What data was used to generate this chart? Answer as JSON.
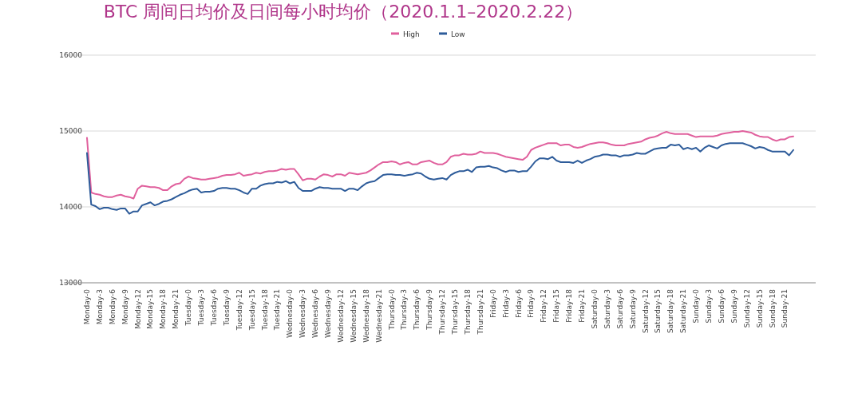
{
  "chart_data": {
    "type": "line",
    "title": "BTC 周间日均价及日间每小时均价（2020.1.1–2020.2.22）",
    "categories": [
      "Monday-0",
      null,
      null,
      "Monday-3",
      null,
      null,
      "Monday-6",
      null,
      null,
      "Monday-9",
      null,
      null,
      "Monday-12",
      null,
      null,
      "Monday-15",
      null,
      null,
      "Monday-18",
      null,
      null,
      "Monday-21",
      null,
      null,
      "Tuesday-0",
      null,
      null,
      "Tuesday-3",
      null,
      null,
      "Tuesday-6",
      null,
      null,
      "Tuesday-9",
      null,
      null,
      "Tuesday-12",
      null,
      null,
      "Tuesday-15",
      null,
      null,
      "Tuesday-18",
      null,
      null,
      "Tuesday-21",
      null,
      null,
      "Wednesday-0",
      null,
      null,
      "Wednesday-3",
      null,
      null,
      "Wednesday-6",
      null,
      null,
      "Wednesday-9",
      null,
      null,
      "Wednesday-12",
      null,
      null,
      "Wednesday-15",
      null,
      null,
      "Wednesday-18",
      null,
      null,
      "Wednesday-21",
      null,
      null,
      "Thursday-0",
      null,
      null,
      "Thursday-3",
      null,
      null,
      "Thursday-6",
      null,
      null,
      "Thursday-9",
      null,
      null,
      "Thursday-12",
      null,
      null,
      "Thursday-15",
      null,
      null,
      "Thursday-18",
      null,
      null,
      "Thursday-21",
      null,
      null,
      "Friday-0",
      null,
      null,
      "Friday-3",
      null,
      null,
      "Friday-6",
      null,
      null,
      "Friday-9",
      null,
      null,
      "Friday-12",
      null,
      null,
      "Friday-15",
      null,
      null,
      "Friday-18",
      null,
      null,
      "Friday-21",
      null,
      null,
      "Saturday-0",
      null,
      null,
      "Saturday-3",
      null,
      null,
      "Saturday-6",
      null,
      null,
      "Saturday-9",
      null,
      null,
      "Saturday-12",
      null,
      null,
      "Saturday-15",
      null,
      null,
      "Saturday-18",
      null,
      null,
      "Saturday-21",
      null,
      null,
      "Sunday-0",
      null,
      null,
      "Sunday-3",
      null,
      null,
      "Sunday-6",
      null,
      null,
      "Sunday-9",
      null,
      null,
      "Sunday-12",
      null,
      null,
      "Sunday-15",
      null,
      null,
      "Sunday-18",
      null,
      null,
      "Sunday-21",
      null,
      null
    ],
    "series": [
      {
        "name": "High",
        "color": "#e0609d",
        "values": [
          14910,
          14190,
          14170,
          14160,
          14140,
          14130,
          14130,
          14150,
          14160,
          14140,
          14130,
          14110,
          14240,
          14280,
          14270,
          14260,
          14260,
          14250,
          14220,
          14220,
          14270,
          14300,
          14310,
          14370,
          14400,
          14380,
          14370,
          14360,
          14360,
          14370,
          14380,
          14390,
          14410,
          14420,
          14420,
          14430,
          14450,
          14410,
          14420,
          14430,
          14450,
          14440,
          14460,
          14470,
          14470,
          14480,
          14500,
          14490,
          14500,
          14500,
          14430,
          14350,
          14370,
          14370,
          14360,
          14400,
          14430,
          14420,
          14400,
          14430,
          14430,
          14410,
          14450,
          14440,
          14430,
          14440,
          14450,
          14480,
          14520,
          14560,
          14590,
          14590,
          14600,
          14590,
          14560,
          14580,
          14590,
          14560,
          14560,
          14590,
          14600,
          14610,
          14580,
          14560,
          14560,
          14590,
          14660,
          14680,
          14680,
          14700,
          14690,
          14690,
          14700,
          14730,
          14710,
          14710,
          14710,
          14700,
          14680,
          14660,
          14650,
          14640,
          14630,
          14620,
          14660,
          14750,
          14780,
          14800,
          14820,
          14840,
          14840,
          14840,
          14810,
          14820,
          14820,
          14790,
          14780,
          14790,
          14810,
          14830,
          14840,
          14850,
          14850,
          14840,
          14820,
          14810,
          14810,
          14810,
          14830,
          14840,
          14850,
          14860,
          14890,
          14910,
          14920,
          14940,
          14970,
          14990,
          14970,
          14960,
          14960,
          14960,
          14960,
          14940,
          14920,
          14930,
          14930,
          14930,
          14930,
          14940,
          14960,
          14970,
          14980,
          14990,
          14990,
          15000,
          14990,
          14980,
          14950,
          14930,
          14920,
          14920,
          14890,
          14870,
          14890,
          14890,
          14920,
          14930
        ]
      },
      {
        "name": "Low",
        "color": "#2e5c9a",
        "values": [
          14710,
          14030,
          14010,
          13970,
          13990,
          13990,
          13970,
          13960,
          13980,
          13980,
          13910,
          13940,
          13940,
          14020,
          14040,
          14060,
          14020,
          14040,
          14070,
          14080,
          14100,
          14130,
          14160,
          14180,
          14210,
          14230,
          14240,
          14190,
          14200,
          14200,
          14210,
          14240,
          14250,
          14250,
          14240,
          14240,
          14220,
          14190,
          14170,
          14240,
          14240,
          14280,
          14300,
          14310,
          14310,
          14330,
          14320,
          14340,
          14310,
          14330,
          14250,
          14210,
          14210,
          14210,
          14240,
          14260,
          14250,
          14250,
          14240,
          14240,
          14240,
          14210,
          14240,
          14240,
          14220,
          14270,
          14310,
          14330,
          14340,
          14380,
          14420,
          14430,
          14430,
          14420,
          14420,
          14410,
          14420,
          14430,
          14450,
          14440,
          14400,
          14370,
          14360,
          14370,
          14380,
          14360,
          14420,
          14450,
          14470,
          14470,
          14490,
          14460,
          14520,
          14530,
          14530,
          14540,
          14520,
          14510,
          14480,
          14460,
          14480,
          14480,
          14460,
          14470,
          14470,
          14530,
          14600,
          14640,
          14640,
          14630,
          14660,
          14610,
          14590,
          14590,
          14590,
          14580,
          14610,
          14580,
          14610,
          14630,
          14660,
          14670,
          14690,
          14690,
          14680,
          14680,
          14660,
          14680,
          14680,
          14690,
          14710,
          14700,
          14700,
          14730,
          14760,
          14770,
          14780,
          14780,
          14820,
          14810,
          14820,
          14760,
          14780,
          14760,
          14780,
          14730,
          14780,
          14810,
          14790,
          14770,
          14810,
          14830,
          14840,
          14840,
          14840,
          14840,
          14820,
          14800,
          14770,
          14790,
          14780,
          14750,
          14730,
          14730,
          14730,
          14730,
          14680,
          14750
        ]
      }
    ],
    "ylim": [
      13000,
      16000
    ],
    "yticks": [
      13000,
      14000,
      15000,
      16000
    ],
    "grid": "y",
    "legend": "top"
  }
}
